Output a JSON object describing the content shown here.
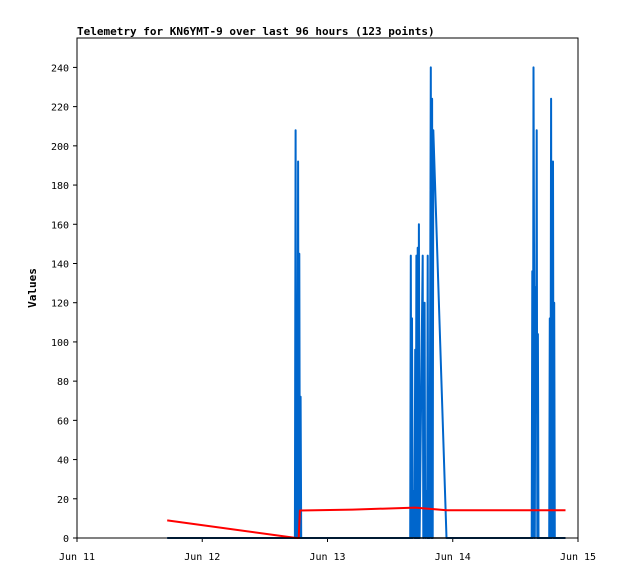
{
  "chart_data": {
    "type": "line",
    "title": "Telemetry for KN6YMT-9 over last 96 hours (123 points)",
    "xlabel": "",
    "ylabel": "Values",
    "x_ticks": [
      "Jun 11",
      "Jun 12",
      "Jun 13",
      "Jun 14",
      "Jun 15"
    ],
    "x_range_days": [
      0,
      4
    ],
    "ylim": [
      0,
      255
    ],
    "y_ticks": [
      0,
      20,
      40,
      60,
      80,
      100,
      120,
      140,
      160,
      180,
      200,
      220,
      240
    ],
    "grid": false,
    "legend": "none",
    "series": [
      {
        "color": "#0066cc",
        "points": [
          [
            0.72,
            0
          ],
          [
            1.74,
            0
          ],
          [
            1.745,
            208
          ],
          [
            1.75,
            0
          ],
          [
            1.755,
            96
          ],
          [
            1.76,
            0
          ],
          [
            1.765,
            192
          ],
          [
            1.77,
            0
          ],
          [
            1.775,
            145
          ],
          [
            1.78,
            0
          ],
          [
            1.785,
            72
          ],
          [
            1.79,
            0
          ],
          [
            2.66,
            0
          ],
          [
            2.665,
            144
          ],
          [
            2.67,
            0
          ],
          [
            2.675,
            112
          ],
          [
            2.68,
            0
          ],
          [
            2.69,
            24
          ],
          [
            2.695,
            0
          ],
          [
            2.7,
            96
          ],
          [
            2.705,
            0
          ],
          [
            2.71,
            144
          ],
          [
            2.715,
            0
          ],
          [
            2.72,
            148
          ],
          [
            2.725,
            0
          ],
          [
            2.73,
            160
          ],
          [
            2.735,
            0
          ],
          [
            2.76,
            144
          ],
          [
            2.765,
            0
          ],
          [
            2.775,
            120
          ],
          [
            2.78,
            0
          ],
          [
            2.79,
            24
          ],
          [
            2.795,
            0
          ],
          [
            2.8,
            144
          ],
          [
            2.805,
            0
          ],
          [
            2.81,
            72
          ],
          [
            2.815,
            0
          ],
          [
            2.825,
            240
          ],
          [
            2.83,
            0
          ],
          [
            2.835,
            224
          ],
          [
            2.84,
            0
          ],
          [
            2.845,
            208
          ],
          [
            2.95,
            0
          ],
          [
            3.63,
            0
          ],
          [
            3.635,
            136
          ],
          [
            3.64,
            0
          ],
          [
            3.645,
            240
          ],
          [
            3.65,
            112
          ],
          [
            3.655,
            0
          ],
          [
            3.66,
            128
          ],
          [
            3.665,
            64
          ],
          [
            3.67,
            208
          ],
          [
            3.675,
            0
          ],
          [
            3.68,
            104
          ],
          [
            3.685,
            0
          ],
          [
            3.77,
            0
          ],
          [
            3.775,
            112
          ],
          [
            3.78,
            0
          ],
          [
            3.785,
            224
          ],
          [
            3.79,
            0
          ],
          [
            3.8,
            192
          ],
          [
            3.805,
            0
          ],
          [
            3.81,
            120
          ],
          [
            3.815,
            0
          ],
          [
            3.9,
            0
          ]
        ]
      },
      {
        "color": "#ff0000",
        "points": [
          [
            0.72,
            9
          ],
          [
            1.75,
            0
          ],
          [
            1.77,
            0
          ],
          [
            1.78,
            14
          ],
          [
            2.2,
            14.5
          ],
          [
            2.7,
            15.5
          ],
          [
            2.95,
            14.2
          ],
          [
            3.5,
            14.2
          ],
          [
            3.9,
            14.2
          ]
        ]
      },
      {
        "color": "#000000",
        "points": [
          [
            0.72,
            0
          ],
          [
            3.9,
            0
          ]
        ]
      }
    ]
  }
}
